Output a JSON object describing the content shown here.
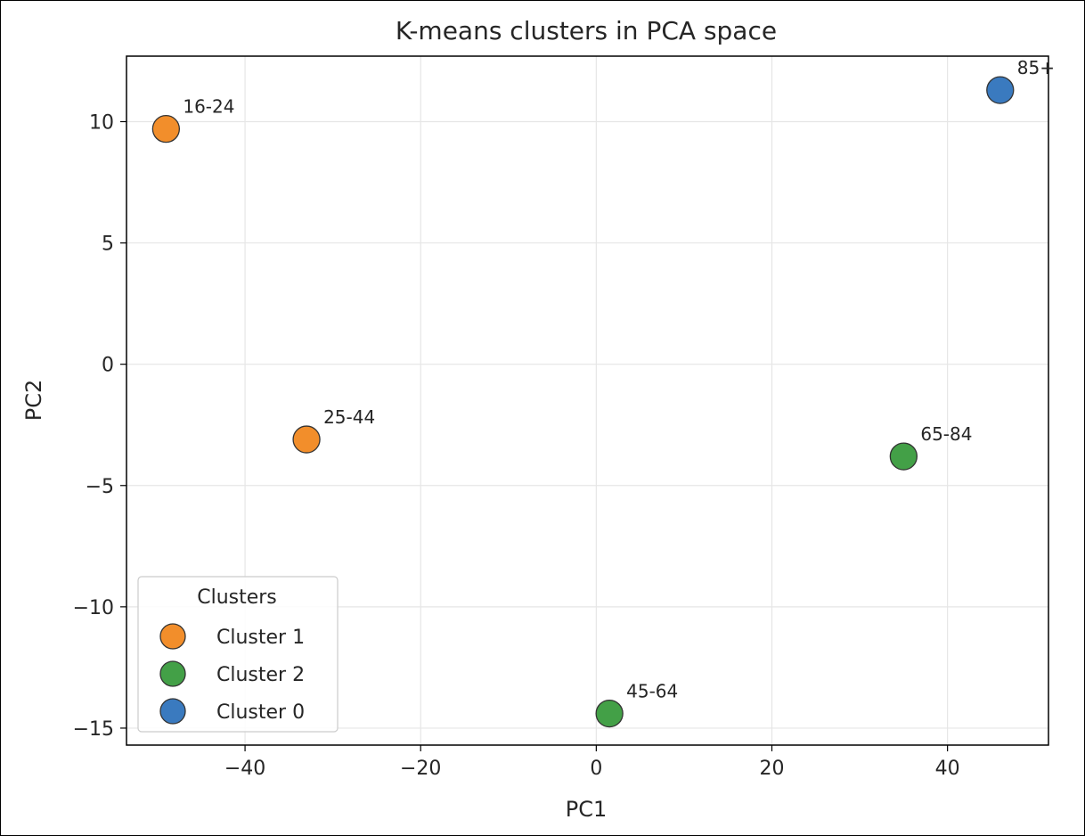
{
  "chart_data": {
    "type": "scatter",
    "title": "K-means clusters in PCA space",
    "xlabel": "PC1",
    "ylabel": "PC2",
    "xlim": [
      -53.5,
      51.5
    ],
    "ylim": [
      -15.7,
      12.7
    ],
    "xticks": [
      -40,
      -20,
      0,
      20,
      40
    ],
    "yticks": [
      -15,
      -10,
      -5,
      0,
      5,
      10
    ],
    "grid": true,
    "legend": {
      "title": "Clusters",
      "position": "lower-left",
      "entries": [
        "Cluster 1",
        "Cluster 2",
        "Cluster 0"
      ]
    },
    "series": [
      {
        "name": "Cluster 1",
        "color": "#f28e2b",
        "points": [
          {
            "x": -49.0,
            "y": 9.7,
            "label": "16-24"
          },
          {
            "x": -33.0,
            "y": -3.1,
            "label": "25-44"
          }
        ]
      },
      {
        "name": "Cluster 2",
        "color": "#43a047",
        "points": [
          {
            "x": 1.5,
            "y": -14.4,
            "label": "45-64"
          },
          {
            "x": 35.0,
            "y": -3.8,
            "label": "65-84"
          }
        ]
      },
      {
        "name": "Cluster 0",
        "color": "#3a7abf",
        "points": [
          {
            "x": 46.0,
            "y": 11.3,
            "label": "85+"
          }
        ]
      }
    ]
  }
}
